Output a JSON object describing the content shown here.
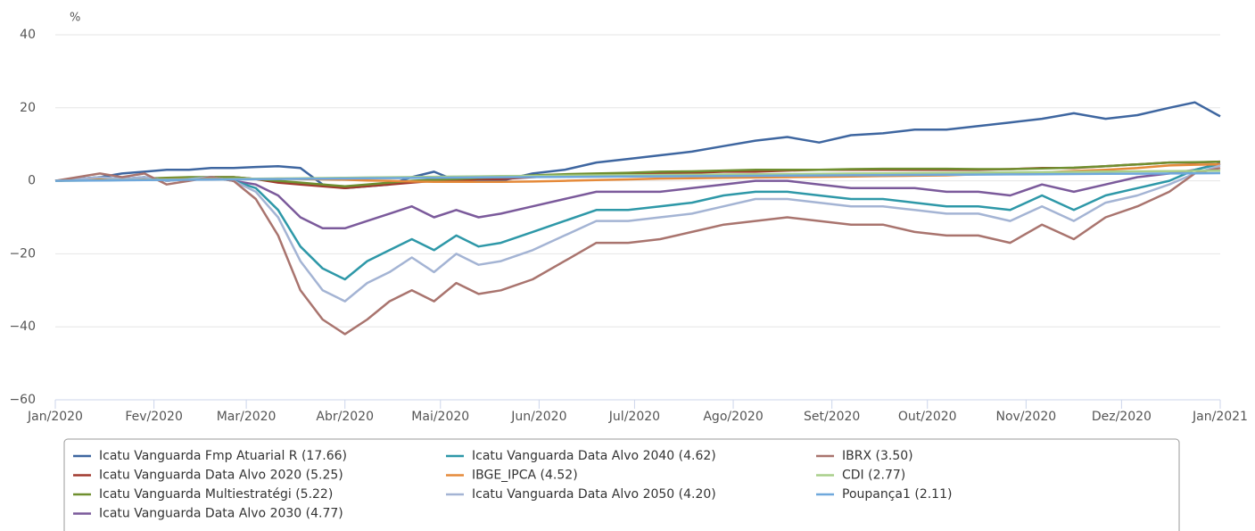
{
  "chart_data": {
    "type": "line",
    "y_label": "%",
    "x": [
      0,
      7,
      14,
      21,
      28,
      35,
      42,
      49,
      56,
      63,
      70,
      77,
      84,
      91,
      98,
      105,
      112,
      119,
      126,
      133,
      140,
      150,
      160,
      170,
      180,
      190,
      200,
      210,
      220,
      230,
      240,
      250,
      260,
      270,
      280,
      290,
      300,
      310,
      320,
      330,
      340,
      350,
      358,
      366
    ],
    "xlim": [
      0,
      366
    ],
    "xticks": [
      {
        "value": 0,
        "label": "Jan/2020"
      },
      {
        "value": 31,
        "label": "Fev/2020"
      },
      {
        "value": 60,
        "label": "Mar/2020"
      },
      {
        "value": 91,
        "label": "Abr/2020"
      },
      {
        "value": 121,
        "label": "Mai/2020"
      },
      {
        "value": 152,
        "label": "Jun/2020"
      },
      {
        "value": 182,
        "label": "Jul/2020"
      },
      {
        "value": 213,
        "label": "Ago/2020"
      },
      {
        "value": 244,
        "label": "Set/2020"
      },
      {
        "value": 274,
        "label": "Out/2020"
      },
      {
        "value": 305,
        "label": "Nov/2020"
      },
      {
        "value": 335,
        "label": "Dez/2020"
      },
      {
        "value": 366,
        "label": "Jan/2021"
      }
    ],
    "ylim": [
      -60,
      40
    ],
    "yticks": [
      40,
      20,
      0,
      {
        "value": -20,
        "label": "−20"
      },
      {
        "value": -40,
        "label": "−40"
      },
      {
        "value": -60,
        "label": "−60"
      }
    ],
    "grid": true,
    "legend": "bottom",
    "series": [
      {
        "name": "Icatu Vanguarda Fmp Atuarial R (17.66)",
        "color": "#3e66a0",
        "values": [
          0,
          0.5,
          1,
          2,
          2.5,
          3,
          3,
          3.5,
          3.5,
          3.8,
          4,
          3.5,
          -1,
          -2,
          -1.5,
          -1,
          1,
          2.5,
          0,
          0,
          0,
          2,
          3,
          5,
          6,
          7,
          8,
          9.5,
          11,
          12,
          10.5,
          12.5,
          13,
          14,
          14,
          15,
          16,
          17,
          18.5,
          17,
          18,
          20,
          21.5,
          17.66
        ]
      },
      {
        "name": "Icatu Vanguarda Data Alvo 2020 (5.25)",
        "color": "#a0392e",
        "values": [
          0,
          0.2,
          0.4,
          0.5,
          0.6,
          0.7,
          0.8,
          1,
          1,
          0.5,
          -0.5,
          -1,
          -1.5,
          -2,
          -1.5,
          -1,
          -0.5,
          0,
          0,
          0.5,
          0.5,
          1,
          1.5,
          1.5,
          2,
          2,
          2.2,
          2.5,
          2.5,
          2.8,
          3,
          3,
          3,
          3,
          3,
          3,
          3.2,
          3.5,
          3.5,
          4,
          4.5,
          5,
          5,
          5.25
        ]
      },
      {
        "name": "Icatu Vanguarda Multiestratégi (5.22)",
        "color": "#6f8f2f",
        "values": [
          0,
          0.2,
          0.4,
          0.5,
          0.6,
          0.8,
          1,
          1,
          1,
          0.5,
          0,
          -0.5,
          -1,
          -1.5,
          -1,
          -0.5,
          0,
          0.3,
          0.5,
          0.8,
          1,
          1.5,
          1.8,
          2,
          2.2,
          2.5,
          2.6,
          2.8,
          3,
          3,
          3,
          3.2,
          3.3,
          3.3,
          3.3,
          3.2,
          3.2,
          3.4,
          3.6,
          4,
          4.5,
          5,
          5.1,
          5.22
        ]
      },
      {
        "name": "Icatu Vanguarda Data Alvo 2030 (4.77)",
        "color": "#7b5a9b",
        "values": [
          0,
          0.5,
          1,
          0.5,
          1,
          0,
          0.5,
          1,
          0,
          -1,
          -4,
          -10,
          -13,
          -13,
          -11,
          -9,
          -7,
          -10,
          -8,
          -10,
          -9,
          -7,
          -5,
          -3,
          -3,
          -3,
          -2,
          -1,
          0,
          0,
          -1,
          -2,
          -2,
          -2,
          -3,
          -3,
          -4,
          -1,
          -3,
          -1,
          1,
          2,
          3,
          4.77
        ]
      },
      {
        "name": "Icatu Vanguarda Data Alvo 2040 (4.62)",
        "color": "#2e98a8",
        "values": [
          0,
          0.5,
          1,
          0.5,
          1,
          0,
          0.5,
          1,
          0,
          -2,
          -8,
          -18,
          -24,
          -27,
          -22,
          -19,
          -16,
          -19,
          -15,
          -18,
          -17,
          -14,
          -11,
          -8,
          -8,
          -7,
          -6,
          -4,
          -3,
          -3,
          -4,
          -5,
          -5,
          -6,
          -7,
          -7,
          -8,
          -4,
          -8,
          -4,
          -2,
          0,
          3,
          4.62
        ]
      },
      {
        "name": "IBGE_IPCA (4.52)",
        "color": "#e58a3a",
        "values": [
          0,
          0.2,
          0.3,
          0.3,
          0.4,
          0.4,
          0.5,
          0.5,
          0.5,
          0.5,
          0.6,
          0.5,
          0.4,
          0.3,
          0.1,
          0,
          -0.2,
          -0.3,
          -0.3,
          -0.3,
          -0.3,
          -0.2,
          0,
          0.2,
          0.4,
          0.6,
          0.7,
          0.8,
          0.9,
          1,
          1.1,
          1.2,
          1.3,
          1.4,
          1.5,
          1.8,
          2,
          2.3,
          2.7,
          3,
          3.5,
          4.2,
          4.4,
          4.52
        ]
      },
      {
        "name": "Icatu Vanguarda Data Alvo 2050 (4.20)",
        "color": "#a4b4d4",
        "values": [
          0,
          0.5,
          1,
          0.5,
          1,
          0,
          0.5,
          1,
          0,
          -3,
          -10,
          -22,
          -30,
          -33,
          -28,
          -25,
          -21,
          -25,
          -20,
          -23,
          -22,
          -19,
          -15,
          -11,
          -11,
          -10,
          -9,
          -7,
          -5,
          -5,
          -6,
          -7,
          -7,
          -8,
          -9,
          -9,
          -11,
          -7,
          -11,
          -6,
          -4,
          -1,
          2,
          4.2
        ]
      },
      {
        "name": "IBRX (3.50)",
        "color": "#a9746e",
        "values": [
          0,
          1,
          2,
          1,
          2,
          -1,
          0,
          1,
          0,
          -5,
          -15,
          -30,
          -38,
          -42,
          -38,
          -33,
          -30,
          -33,
          -28,
          -31,
          -30,
          -27,
          -22,
          -17,
          -17,
          -16,
          -14,
          -12,
          -11,
          -10,
          -11,
          -12,
          -12,
          -14,
          -15,
          -15,
          -17,
          -12,
          -16,
          -10,
          -7,
          -3,
          2,
          3.5
        ]
      },
      {
        "name": "CDI (2.77)",
        "color": "#a9cf8a",
        "values": [
          0,
          0.06,
          0.13,
          0.19,
          0.26,
          0.32,
          0.39,
          0.45,
          0.52,
          0.58,
          0.64,
          0.71,
          0.77,
          0.84,
          0.9,
          0.97,
          1.03,
          1.1,
          1.16,
          1.22,
          1.29,
          1.35,
          1.42,
          1.48,
          1.55,
          1.61,
          1.67,
          1.74,
          1.8,
          1.87,
          1.93,
          2,
          2.06,
          2.12,
          2.19,
          2.25,
          2.32,
          2.38,
          2.45,
          2.51,
          2.58,
          2.64,
          2.71,
          2.77
        ]
      },
      {
        "name": "Poupança1 (2.11)",
        "color": "#6fa8dc",
        "values": [
          0,
          0.05,
          0.1,
          0.15,
          0.2,
          0.25,
          0.29,
          0.34,
          0.39,
          0.44,
          0.49,
          0.54,
          0.59,
          0.64,
          0.69,
          0.74,
          0.79,
          0.83,
          0.88,
          0.93,
          0.98,
          1.03,
          1.08,
          1.13,
          1.18,
          1.23,
          1.28,
          1.33,
          1.37,
          1.42,
          1.47,
          1.52,
          1.57,
          1.62,
          1.67,
          1.72,
          1.77,
          1.82,
          1.87,
          1.91,
          1.96,
          2.01,
          2.06,
          2.11
        ]
      }
    ]
  }
}
